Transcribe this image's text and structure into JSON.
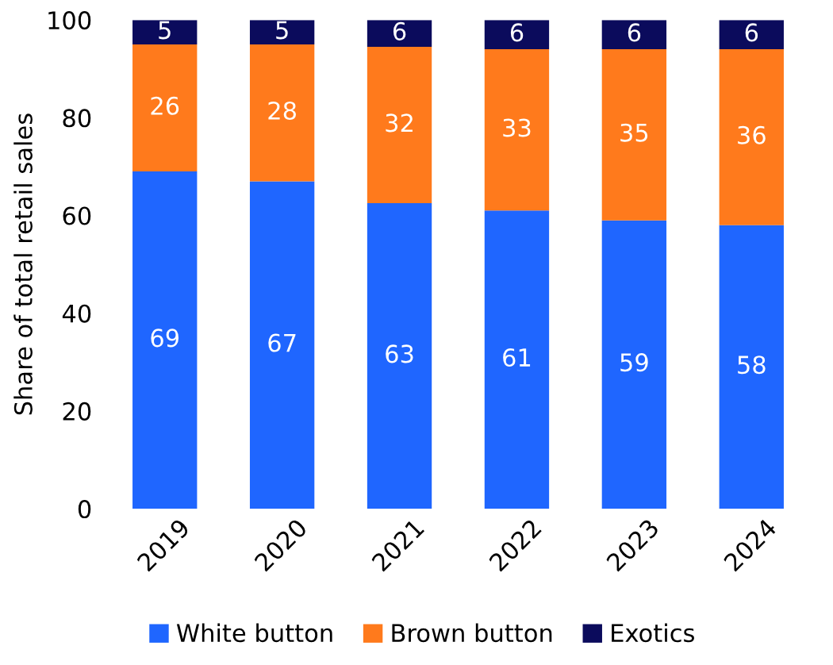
{
  "chart_data": {
    "type": "bar",
    "stacked": true,
    "ylabel": "Share of total retail sales",
    "categories": [
      "2019",
      "2020",
      "2021",
      "2022",
      "2023",
      "2024"
    ],
    "series": [
      {
        "name": "White button",
        "color": "#1f66ff",
        "values": [
          69,
          67,
          62.5,
          61,
          59,
          58
        ],
        "value_labels": [
          "69",
          "67",
          "63",
          "61",
          "59",
          "58"
        ]
      },
      {
        "name": "Brown button",
        "color": "#ff7a1c",
        "values": [
          26,
          28,
          32,
          33,
          35,
          36
        ],
        "value_labels": [
          "26",
          "28",
          "32",
          "33",
          "35",
          "36"
        ]
      },
      {
        "name": "Exotics",
        "color": "#0b0b5c",
        "values": [
          5,
          5,
          5.5,
          6,
          6,
          6
        ],
        "value_labels": [
          "5",
          "5",
          "6",
          "6",
          "6",
          "6"
        ]
      }
    ],
    "ylim": [
      0,
      100
    ],
    "yticks": [
      0,
      20,
      40,
      60,
      80,
      100
    ],
    "grid": false,
    "legend": "bottom"
  }
}
